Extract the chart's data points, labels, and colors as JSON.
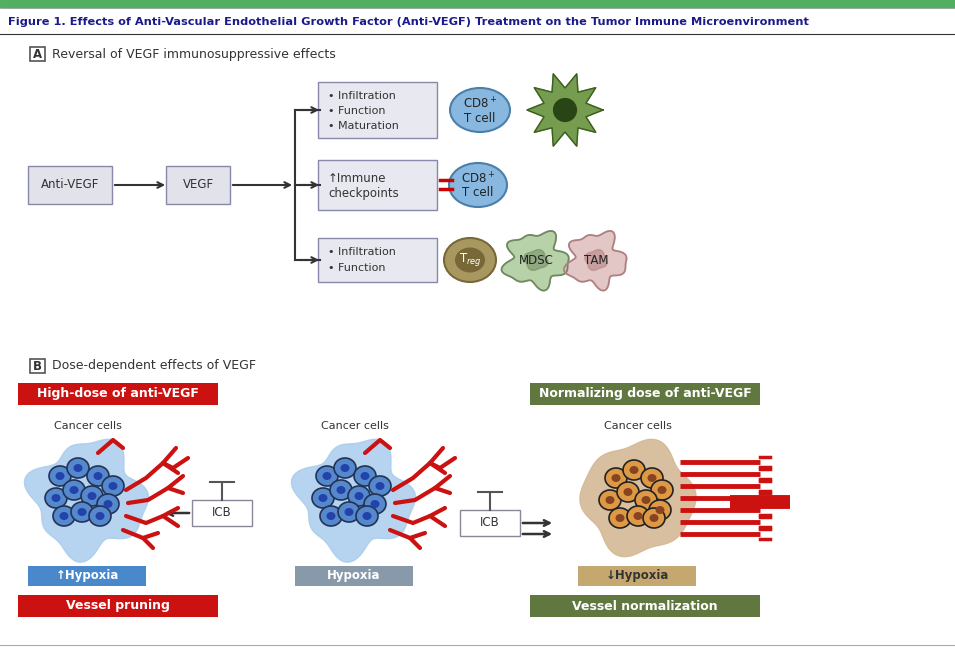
{
  "title": "Figure 1. Effects of Anti-Vascular Endothelial Growth Factor (Anti-VEGF) Treatment on the Tumor Immune Microenvironment",
  "title_color": "#1a1a8c",
  "top_bar_color": "#4caf50",
  "section_a_title": "Reversal of VEGF immunosuppressive effects",
  "section_b_title": "Dose-dependent effects of VEGF",
  "red_color": "#cc1111",
  "green_color": "#5a7a3a",
  "blue_color": "#4a90d9",
  "light_blue_tumor": "#aaccee",
  "tan_tumor": "#d4b896",
  "bg_color": "#ffffff",
  "gray_box": "#c8c8d4",
  "light_gray_box": "#e0e0e8"
}
